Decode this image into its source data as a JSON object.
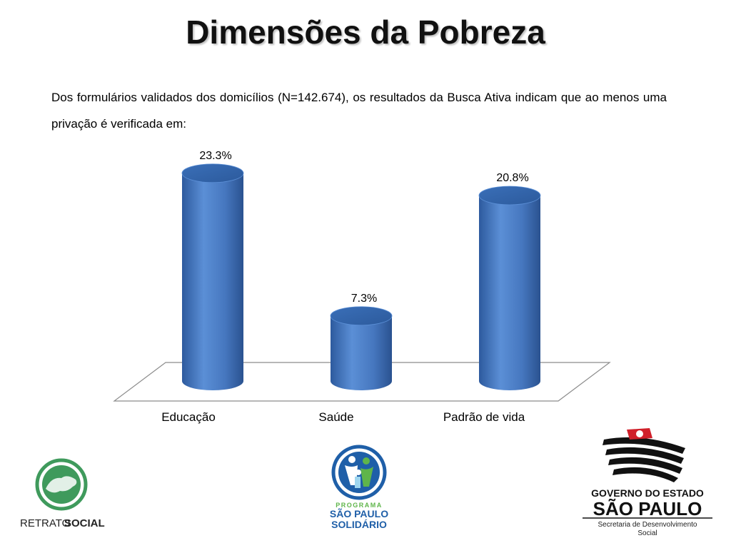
{
  "slide": {
    "title": "Dimensões da Pobreza",
    "intro": "Dos formulários validados dos domicílios (N=142.674), os resultados da Busca Ativa indicam que ao menos uma privação é verificada em:"
  },
  "chart_data": {
    "type": "bar",
    "categories": [
      "Educação",
      "Saúde",
      "Padrão de vida"
    ],
    "values": [
      23.3,
      7.3,
      20.8
    ],
    "value_labels": [
      "23.3%",
      "7.3%",
      "20.8%"
    ],
    "unit": "%",
    "title": "",
    "xlabel": "",
    "ylabel": "",
    "ylim": [
      0,
      25
    ],
    "grid": false,
    "legend": "none",
    "bar_color": "#4a7cc4"
  },
  "logos": {
    "retrato_part1": "RETRATO",
    "retrato_part2": "SOCIAL",
    "programa": "PROGRAMA",
    "sao_paulo": "SÃO PAULO",
    "solidario": "SOLIDÁRIO",
    "governo": "GOVERNO DO ESTADO",
    "estado": "SÃO PAULO",
    "secretaria_line1": "Secretaria de Desenvolvimento",
    "secretaria_line2": "Social"
  },
  "colors": {
    "retrato_green": "#3f9a5c",
    "solidario_blue": "#1f5fa8",
    "solidario_green": "#5fb54a",
    "gov_red": "#d0202a"
  }
}
